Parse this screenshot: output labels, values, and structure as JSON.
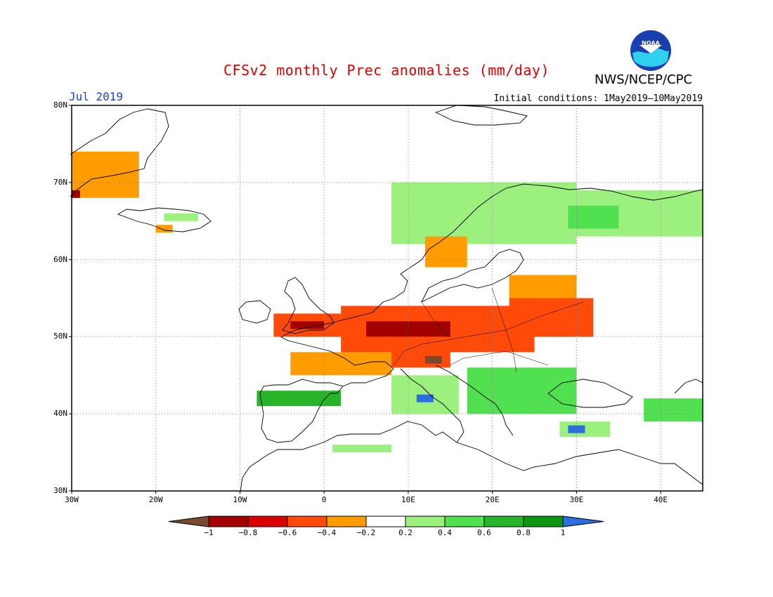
{
  "header": {
    "title": "CFSv2 monthly Prec anomalies (mm/day)",
    "agency": "NWS/NCEP/CPC",
    "month": "Jul 2019",
    "initial_conditions": "Initial conditions: 1May2019–10May2019",
    "logo_text": "NOAA"
  },
  "map": {
    "lon_range": [
      -30,
      45
    ],
    "lat_range": [
      30,
      80
    ],
    "lat_ticks": [
      {
        "value": 80,
        "label": "80N"
      },
      {
        "value": 70,
        "label": "70N"
      },
      {
        "value": 60,
        "label": "60N"
      },
      {
        "value": 50,
        "label": "50N"
      },
      {
        "value": 40,
        "label": "40N"
      },
      {
        "value": 30,
        "label": "30N"
      }
    ],
    "lon_ticks": [
      {
        "value": -30,
        "label": "30W"
      },
      {
        "value": -20,
        "label": "20W"
      },
      {
        "value": -10,
        "label": "10W"
      },
      {
        "value": 0,
        "label": "0"
      },
      {
        "value": 10,
        "label": "10E"
      },
      {
        "value": 20,
        "label": "20E"
      },
      {
        "value": 30,
        "label": "30E"
      },
      {
        "value": 40,
        "label": "40E"
      }
    ],
    "grid": "dotted"
  },
  "colorbar": {
    "colors": [
      "#7a4a2e",
      "#a30000",
      "#d80000",
      "#ff4a0a",
      "#ff9c00",
      "#ffffff",
      "#9cf07e",
      "#50e050",
      "#28b428",
      "#0f960f",
      "#2a6ee0"
    ],
    "labels": [
      "−1",
      "−0.8",
      "−0.6",
      "−0.4",
      "−0.2",
      "0.2",
      "0.4",
      "0.6",
      "0.8",
      "1"
    ]
  },
  "regions": [
    {
      "name": "Greenland coast",
      "lon": [
        -30,
        -22
      ],
      "lat": [
        68,
        74
      ],
      "color": "#ff9c00"
    },
    {
      "name": "Greenland tip",
      "lon": [
        -30,
        -29
      ],
      "lat": [
        68,
        69
      ],
      "color": "#a30000"
    },
    {
      "name": "Iceland north",
      "lon": [
        -19,
        -15
      ],
      "lat": [
        65,
        66
      ],
      "color": "#9cf07e"
    },
    {
      "name": "Iceland south",
      "lon": [
        -20,
        -18
      ],
      "lat": [
        63.5,
        64.5
      ],
      "color": "#ff9c00"
    },
    {
      "name": "Scandinavia north",
      "lon": [
        8,
        30
      ],
      "lat": [
        62,
        70
      ],
      "color": "#9cf07e"
    },
    {
      "name": "Kola / Russia north",
      "lon": [
        25,
        45
      ],
      "lat": [
        63,
        69
      ],
      "color": "#9cf07e"
    },
    {
      "name": "Kola core",
      "lon": [
        29,
        35
      ],
      "lat": [
        64,
        67
      ],
      "color": "#50e050"
    },
    {
      "name": "Sweden south",
      "lon": [
        12,
        17
      ],
      "lat": [
        59,
        63
      ],
      "color": "#ff9c00"
    },
    {
      "name": "Baltic east",
      "lon": [
        22,
        30
      ],
      "lat": [
        55,
        58
      ],
      "color": "#ff9c00"
    },
    {
      "name": "Britain",
      "lon": [
        -6,
        2
      ],
      "lat": [
        50,
        53
      ],
      "color": "#ff4a0a"
    },
    {
      "name": "Britain core",
      "lon": [
        -4,
        0
      ],
      "lat": [
        51,
        52
      ],
      "color": "#a30000"
    },
    {
      "name": "Central Europe",
      "lon": [
        2,
        25
      ],
      "lat": [
        48,
        54
      ],
      "color": "#ff4a0a"
    },
    {
      "name": "Central Europe core",
      "lon": [
        5,
        15
      ],
      "lat": [
        50,
        52
      ],
      "color": "#a30000"
    },
    {
      "name": "Ukraine west",
      "lon": [
        22,
        32
      ],
      "lat": [
        50,
        55
      ],
      "color": "#ff4a0a"
    },
    {
      "name": "Alps",
      "lon": [
        8,
        15
      ],
      "lat": [
        46,
        49
      ],
      "color": "#ff4a0a"
    },
    {
      "name": "Alps core",
      "lon": [
        12,
        14
      ],
      "lat": [
        46.5,
        47.5
      ],
      "color": "#7a4a2e"
    },
    {
      "name": "France",
      "lon": [
        -4,
        8
      ],
      "lat": [
        45,
        48
      ],
      "color": "#ff9c00"
    },
    {
      "name": "Balkans",
      "lon": [
        17,
        30
      ],
      "lat": [
        40,
        46
      ],
      "color": "#50e050"
    },
    {
      "name": "Iberia north",
      "lon": [
        -8,
        2
      ],
      "lat": [
        41,
        43
      ],
      "color": "#28b428"
    },
    {
      "name": "Italy",
      "lon": [
        8,
        16
      ],
      "lat": [
        40,
        45
      ],
      "color": "#9cf07e"
    },
    {
      "name": "Tyrrhenian core",
      "lon": [
        11,
        13
      ],
      "lat": [
        41.5,
        42.5
      ],
      "color": "#2a6ee0"
    },
    {
      "name": "Turkey west",
      "lon": [
        28,
        34
      ],
      "lat": [
        37,
        39
      ],
      "color": "#9cf07e"
    },
    {
      "name": "Turkey core",
      "lon": [
        29,
        31
      ],
      "lat": [
        37.5,
        38.5
      ],
      "color": "#2a6ee0"
    },
    {
      "name": "Caucasus",
      "lon": [
        38,
        45
      ],
      "lat": [
        39,
        42
      ],
      "color": "#50e050"
    },
    {
      "name": "Algeria coast",
      "lon": [
        1,
        8
      ],
      "lat": [
        35,
        36
      ],
      "color": "#9cf07e"
    }
  ]
}
